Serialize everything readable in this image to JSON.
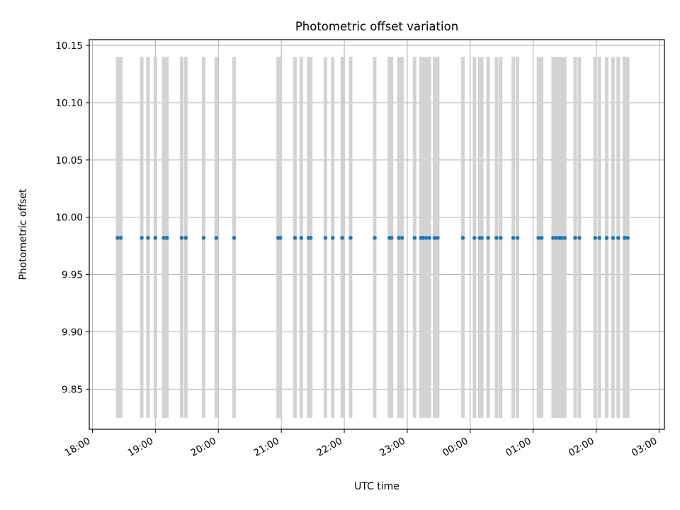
{
  "chart_data": {
    "type": "scatter",
    "title": "Photometric offset variation",
    "xlabel": "UTC time",
    "ylabel": "Photometric offset",
    "grid": true,
    "xlim": [
      "17:57",
      "03:05"
    ],
    "ylim": [
      9.815,
      10.155
    ],
    "x_tick_labels": [
      "18:00",
      "19:00",
      "20:00",
      "21:00",
      "22:00",
      "23:00",
      "00:00",
      "01:00",
      "02:00",
      "03:00"
    ],
    "y_tick_labels": [
      "9.85",
      "9.90",
      "9.95",
      "10.00",
      "10.05",
      "10.10",
      "10.15"
    ],
    "y_ticks": [
      9.85,
      9.9,
      9.95,
      10.0,
      10.05,
      10.1,
      10.15
    ],
    "error_bar_range": [
      9.825,
      10.14
    ],
    "points_x": [
      "18:24",
      "18:27",
      "18:47",
      "18:53",
      "19:00",
      "19:08",
      "19:11",
      "19:25",
      "19:29",
      "19:46",
      "19:58",
      "20:15",
      "20:57",
      "20:59",
      "21:13",
      "21:19",
      "21:26",
      "21:28",
      "21:42",
      "21:49",
      "21:58",
      "22:06",
      "22:29",
      "22:43",
      "22:45",
      "22:52",
      "22:55",
      "23:07",
      "23:13",
      "23:15",
      "23:18",
      "23:21",
      "23:26",
      "23:29",
      "23:53",
      "00:04",
      "00:09",
      "00:11",
      "00:17",
      "00:25",
      "00:29",
      "00:41",
      "00:45",
      "01:05",
      "01:08",
      "01:19",
      "01:22",
      "01:25",
      "01:27",
      "01:30",
      "01:40",
      "01:44",
      "01:59",
      "02:03",
      "02:10",
      "02:16",
      "02:21",
      "02:27",
      "02:30"
    ],
    "points_y": 9.982,
    "colors": {
      "points": "#1f77b4",
      "error_bars": "#d3d3d3",
      "grid": "#b0b0b0"
    }
  }
}
